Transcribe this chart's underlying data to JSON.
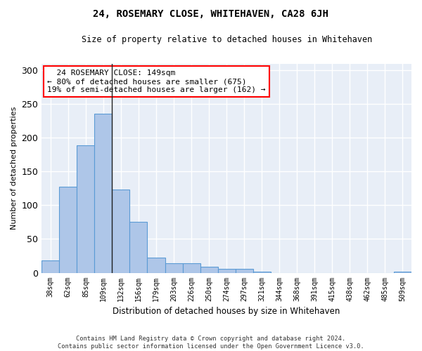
{
  "title": "24, ROSEMARY CLOSE, WHITEHAVEN, CA28 6JH",
  "subtitle": "Size of property relative to detached houses in Whitehaven",
  "xlabel": "Distribution of detached houses by size in Whitehaven",
  "ylabel": "Number of detached properties",
  "bar_color": "#aec6e8",
  "bar_edge_color": "#5b9bd5",
  "background_color": "#e8eef7",
  "grid_color": "#ffffff",
  "categories": [
    "38sqm",
    "62sqm",
    "85sqm",
    "109sqm",
    "132sqm",
    "156sqm",
    "179sqm",
    "203sqm",
    "226sqm",
    "250sqm",
    "274sqm",
    "297sqm",
    "321sqm",
    "344sqm",
    "368sqm",
    "391sqm",
    "415sqm",
    "438sqm",
    "462sqm",
    "485sqm",
    "509sqm"
  ],
  "values": [
    18,
    128,
    189,
    236,
    123,
    75,
    22,
    14,
    14,
    9,
    6,
    6,
    2,
    0,
    0,
    0,
    0,
    0,
    0,
    0,
    2
  ],
  "ylim": [
    0,
    310
  ],
  "yticks": [
    0,
    50,
    100,
    150,
    200,
    250,
    300
  ],
  "annotation_text": "  24 ROSEMARY CLOSE: 149sqm  \n← 80% of detached houses are smaller (675)\n19% of semi-detached houses are larger (162) →",
  "vline_x": 3.5,
  "footer": "Contains HM Land Registry data © Crown copyright and database right 2024.\nContains public sector information licensed under the Open Government Licence v3.0."
}
